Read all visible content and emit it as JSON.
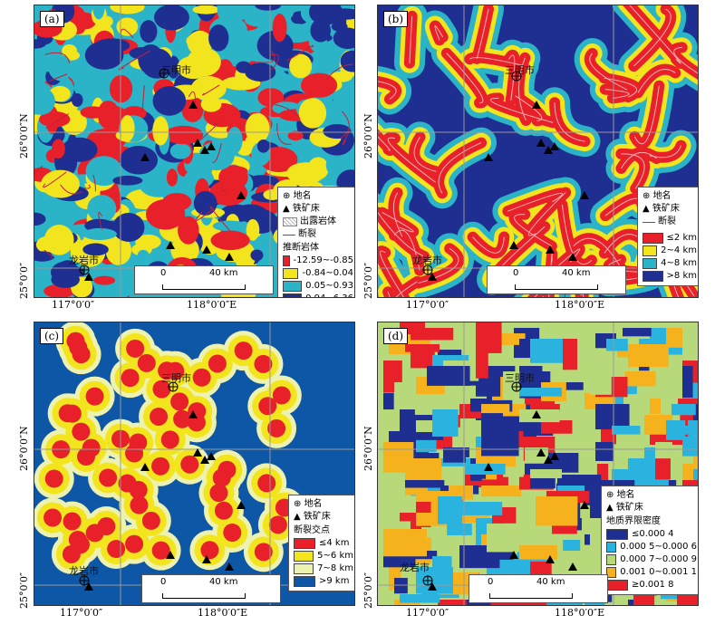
{
  "axes": {
    "lon_left": "117°0′0″",
    "lon_right": "118°0′0″E",
    "lat_top": "26°0′0″N",
    "lat_bottom": "25°0′0″"
  },
  "cities": {
    "sanming": "三明市",
    "longyan": "龙岩市"
  },
  "common_legend": {
    "place": "地名",
    "iron_deposit": "铁矿床",
    "fault": "断裂",
    "outcrop": "出露岩体"
  },
  "scale": {
    "zero": "0",
    "dist": "40 km"
  },
  "panels": {
    "a": {
      "label": "(a)",
      "legend_title": "推断岩体",
      "classes": [
        {
          "label": "-12.59~-0.85",
          "color": "#e8202a"
        },
        {
          "label": "-0.84~0.04",
          "color": "#f2e51e"
        },
        {
          "label": "0.05~0.93",
          "color": "#2bb3c8"
        },
        {
          "label": "0.94~6.36",
          "color": "#1f2f91"
        }
      ]
    },
    "b": {
      "label": "(b)",
      "classes": [
        {
          "label": "≤2 km",
          "color": "#e8202a"
        },
        {
          "label": "2~4 km",
          "color": "#f2e51e"
        },
        {
          "label": "4~8 km",
          "color": "#2bb3c8"
        },
        {
          "label": ">8 km",
          "color": "#1f2f91"
        }
      ]
    },
    "c": {
      "label": "(c)",
      "legend_title": "断裂交点",
      "classes": [
        {
          "label": "≤4 km",
          "color": "#e8202a"
        },
        {
          "label": "5~6 km",
          "color": "#f2e51e"
        },
        {
          "label": "7~8 km",
          "color": "#eef2b0"
        },
        {
          "label": ">9 km",
          "color": "#0d57a6"
        }
      ]
    },
    "d": {
      "label": "(d)",
      "legend_title": "地质界限密度",
      "classes": [
        {
          "label": "≤0.000 4",
          "color": "#1f2f91"
        },
        {
          "label": "0.000 5~0.000 6",
          "color": "#2bb3e0"
        },
        {
          "label": "0.000 7~0.000 9",
          "color": "#b7d97a"
        },
        {
          "label": "0.001 0~0.001 1",
          "color": "#f6b21c"
        },
        {
          "label": "≥0.001 8",
          "color": "#e8202a"
        }
      ]
    }
  }
}
